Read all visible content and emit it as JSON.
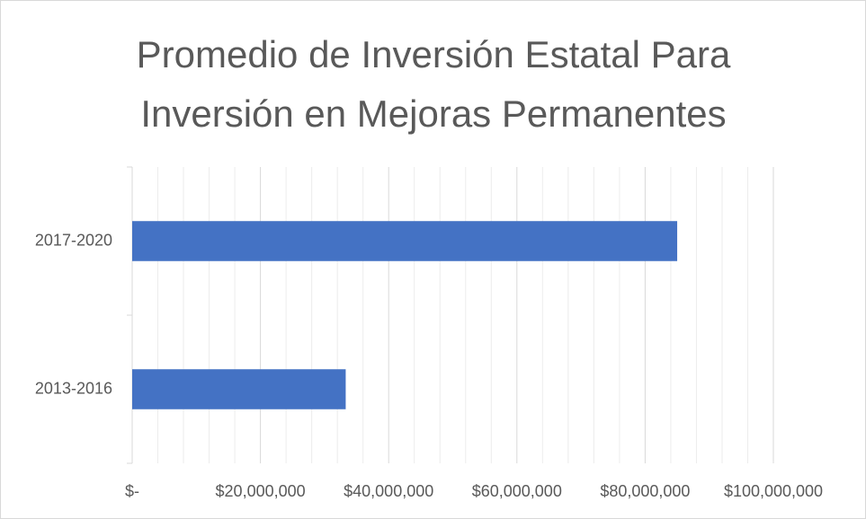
{
  "chart_data": {
    "type": "hbar",
    "title": "Promedio de Inversión Estatal Para Inversión en Mejoras Permanentes",
    "categories": [
      "2013-2016",
      "2017-2020"
    ],
    "values": [
      33300000,
      85000000
    ],
    "color": "#4472c4",
    "xlim": [
      0,
      100000000
    ],
    "xticks": [
      {
        "value": 0,
        "label": "$-"
      },
      {
        "value": 20000000,
        "label": "$20,000,000"
      },
      {
        "value": 40000000,
        "label": "$40,000,000"
      },
      {
        "value": 60000000,
        "label": "$60,000,000"
      },
      {
        "value": 80000000,
        "label": "$80,000,000"
      },
      {
        "value": 100000000,
        "label": "$100,000,000"
      }
    ],
    "xminorticks": [
      4000000,
      8000000,
      12000000,
      16000000,
      24000000,
      28000000,
      32000000,
      36000000,
      44000000,
      48000000,
      52000000,
      56000000,
      64000000,
      68000000,
      72000000,
      76000000,
      84000000,
      88000000,
      92000000,
      96000000
    ],
    "grid": true
  }
}
